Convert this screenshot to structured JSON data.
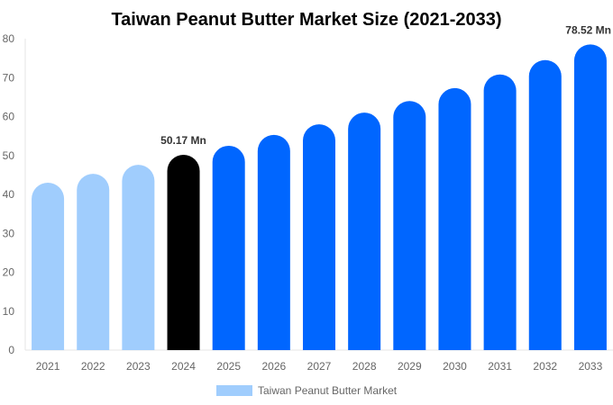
{
  "chart_data": {
    "type": "bar",
    "title": "Taiwan Peanut Butter Market Size (2021-2033)",
    "xlabel": "",
    "ylabel": "",
    "categories": [
      "2021",
      "2022",
      "2023",
      "2024",
      "2025",
      "2026",
      "2027",
      "2028",
      "2029",
      "2030",
      "2031",
      "2032",
      "2033"
    ],
    "series": [
      {
        "name": "Taiwan Peanut Butter Market",
        "values": [
          43.0,
          45.3,
          47.6,
          50.17,
          52.5,
          55.3,
          58.0,
          61.0,
          64.0,
          67.3,
          70.8,
          74.5,
          78.52
        ]
      }
    ],
    "data_labels": {
      "3": "50.17 Mn",
      "12": "78.52 Mn"
    },
    "ylim": [
      0,
      80
    ],
    "yticks": [
      0,
      10,
      20,
      30,
      40,
      50,
      60,
      70,
      80
    ],
    "grid": false,
    "legend": "bottom",
    "colors": {
      "historical": "#a0cdfd",
      "current": "#000000",
      "forecast": "#0066ff",
      "legend": "#a0cdfd"
    }
  }
}
